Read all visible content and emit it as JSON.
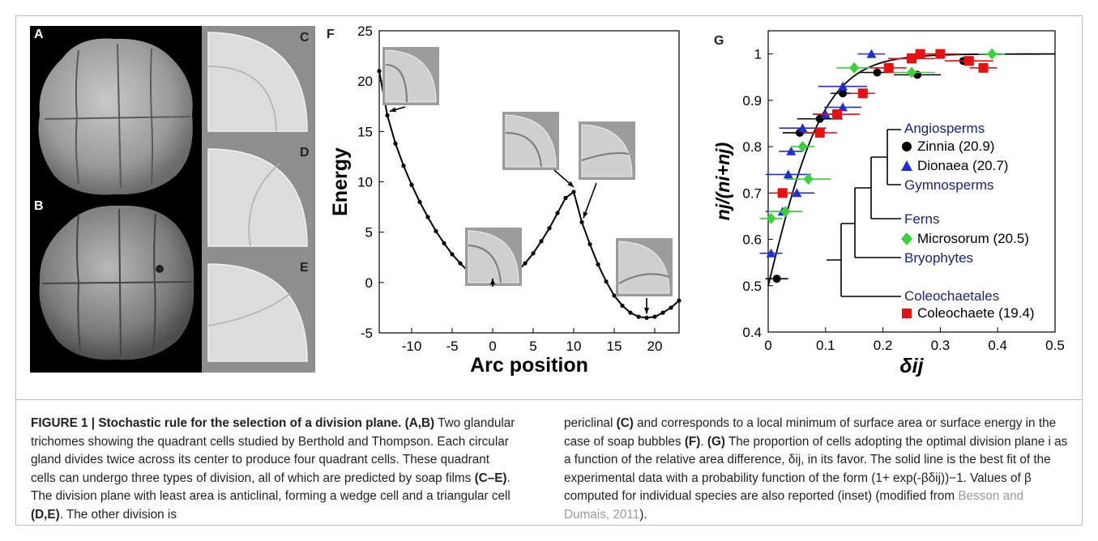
{
  "figure": {
    "panels": {
      "A": "A",
      "B": "B",
      "C": "C",
      "D": "D",
      "E": "E",
      "F": "F",
      "G": "G"
    }
  },
  "chart_data": [
    {
      "type": "line",
      "panel": "F",
      "xlabel": "Arc position",
      "ylabel": "Energy",
      "xlim": [
        -14,
        23
      ],
      "ylim": [
        -5,
        25
      ],
      "xticks": [
        -10,
        -5,
        0,
        5,
        10,
        15,
        20
      ],
      "yticks": [
        -5,
        0,
        5,
        10,
        15,
        20,
        25
      ],
      "x": [
        -14,
        -13,
        -12,
        -11,
        -10,
        -9,
        -8,
        -7,
        -6,
        -5,
        -4,
        -3,
        -2,
        -1,
        0,
        1,
        2,
        3,
        4,
        5,
        6,
        7,
        8,
        9,
        10,
        11,
        12,
        13,
        14,
        15,
        16,
        17,
        18,
        19,
        20,
        21,
        22,
        23
      ],
      "y": [
        21,
        16.6,
        13.8,
        11.6,
        9.7,
        8.0,
        6.5,
        5.1,
        3.9,
        2.8,
        1.9,
        1.1,
        0.5,
        0.1,
        0,
        0.1,
        0.5,
        1.1,
        1.9,
        2.9,
        4.1,
        5.4,
        6.9,
        8.4,
        9.0,
        6.0,
        3.8,
        1.8,
        0.1,
        -1.3,
        -2.3,
        -3.0,
        -3.4,
        -3.5,
        -3.4,
        -3.0,
        -2.5,
        -1.8
      ]
    },
    {
      "type": "scatter",
      "panel": "G",
      "xlabel": "δij",
      "ylabel": "nj/(ni+nj)",
      "xlim": [
        0,
        0.5
      ],
      "ylim": [
        0.4,
        1.05
      ],
      "xticks": [
        "0",
        "0.1",
        "0.2",
        "0.3",
        "0.4",
        "0.5"
      ],
      "yticks": [
        "0.4",
        "0.5",
        "0.6",
        "0.7",
        "0.8",
        "0.9",
        "1"
      ],
      "series": [
        {
          "name": "Zinnia (20.9)",
          "color": "#000000",
          "marker": "circle",
          "x": [
            0.015,
            0.055,
            0.09,
            0.13,
            0.19,
            0.26,
            0.34
          ],
          "y": [
            0.515,
            0.83,
            0.86,
            0.915,
            0.96,
            0.955,
            0.985
          ]
        },
        {
          "name": "Dionaea (20.7)",
          "color": "#1f2fd6",
          "marker": "triangle",
          "x": [
            0.005,
            0.025,
            0.035,
            0.04,
            0.05,
            0.06,
            0.1,
            0.13,
            0.13,
            0.18
          ],
          "y": [
            0.57,
            0.66,
            0.74,
            0.79,
            0.7,
            0.84,
            0.87,
            0.885,
            0.93,
            1.0
          ]
        },
        {
          "name": "Microsorum (20.5)",
          "color": "#3ad13a",
          "marker": "diamond",
          "x": [
            0.005,
            0.03,
            0.07,
            0.06,
            0.15,
            0.25,
            0.39
          ],
          "y": [
            0.645,
            0.66,
            0.73,
            0.8,
            0.97,
            0.96,
            1.0
          ]
        },
        {
          "name": "Coleochaete (19.4)",
          "color": "#e81010",
          "marker": "square",
          "x": [
            0.025,
            0.09,
            0.12,
            0.165,
            0.21,
            0.25,
            0.265,
            0.3,
            0.35,
            0.375
          ],
          "y": [
            0.7,
            0.83,
            0.87,
            0.915,
            0.97,
            0.99,
            1.0,
            1.0,
            0.985,
            0.97
          ]
        }
      ],
      "fit_line": "1/(1+exp(-20*x))"
    }
  ],
  "inset": {
    "groups": [
      "Angiosperms",
      "Gymnosperms",
      "Ferns",
      "Bryophytes",
      "Coleochaetales"
    ],
    "species": [
      "Zinnia (20.9)",
      "Dionaea (20.7)",
      "Microsorum (20.5)",
      "Coleochaete (19.4)"
    ],
    "group_color": "#1a237e"
  },
  "caption": {
    "label": "FIGURE 1 | Stochastic rule for the selection of a division plane.",
    "p1_ab": "(A,B)",
    "p1_text": " Two glandular trichomes showing the quadrant cells studied by Berthold and Thompson. Each circular gland divides twice across its center to produce four quadrant cells. These quadrant cells can undergo three types of division, all of which are predicted by soap films ",
    "p1_ce": "(C–E)",
    "p1_text2": ". The division plane with least area is anticlinal, forming a wedge cell and a triangular cell ",
    "p1_de": "(D,E)",
    "p1_text3": ". The other division is",
    "p2_text": "periclinal ",
    "p2_c": "(C)",
    "p2_text2": " and corresponds to a local minimum of surface area or surface energy in the case of soap bubbles ",
    "p2_f": "(F)",
    "p2_text3": ". ",
    "p2_g": "(G)",
    "p2_text4": " The proportion of cells adopting the optimal division plane i as a function of the relative area difference, δij, in its favor. The solid line is the best fit of the experimental data with a probability function of the form (1+ exp(-βδij))−1. Values of β computed for individual species are also reported (inset) (modified from ",
    "p2_cite": "Besson and Dumais, 2011",
    "p2_end": ")."
  }
}
